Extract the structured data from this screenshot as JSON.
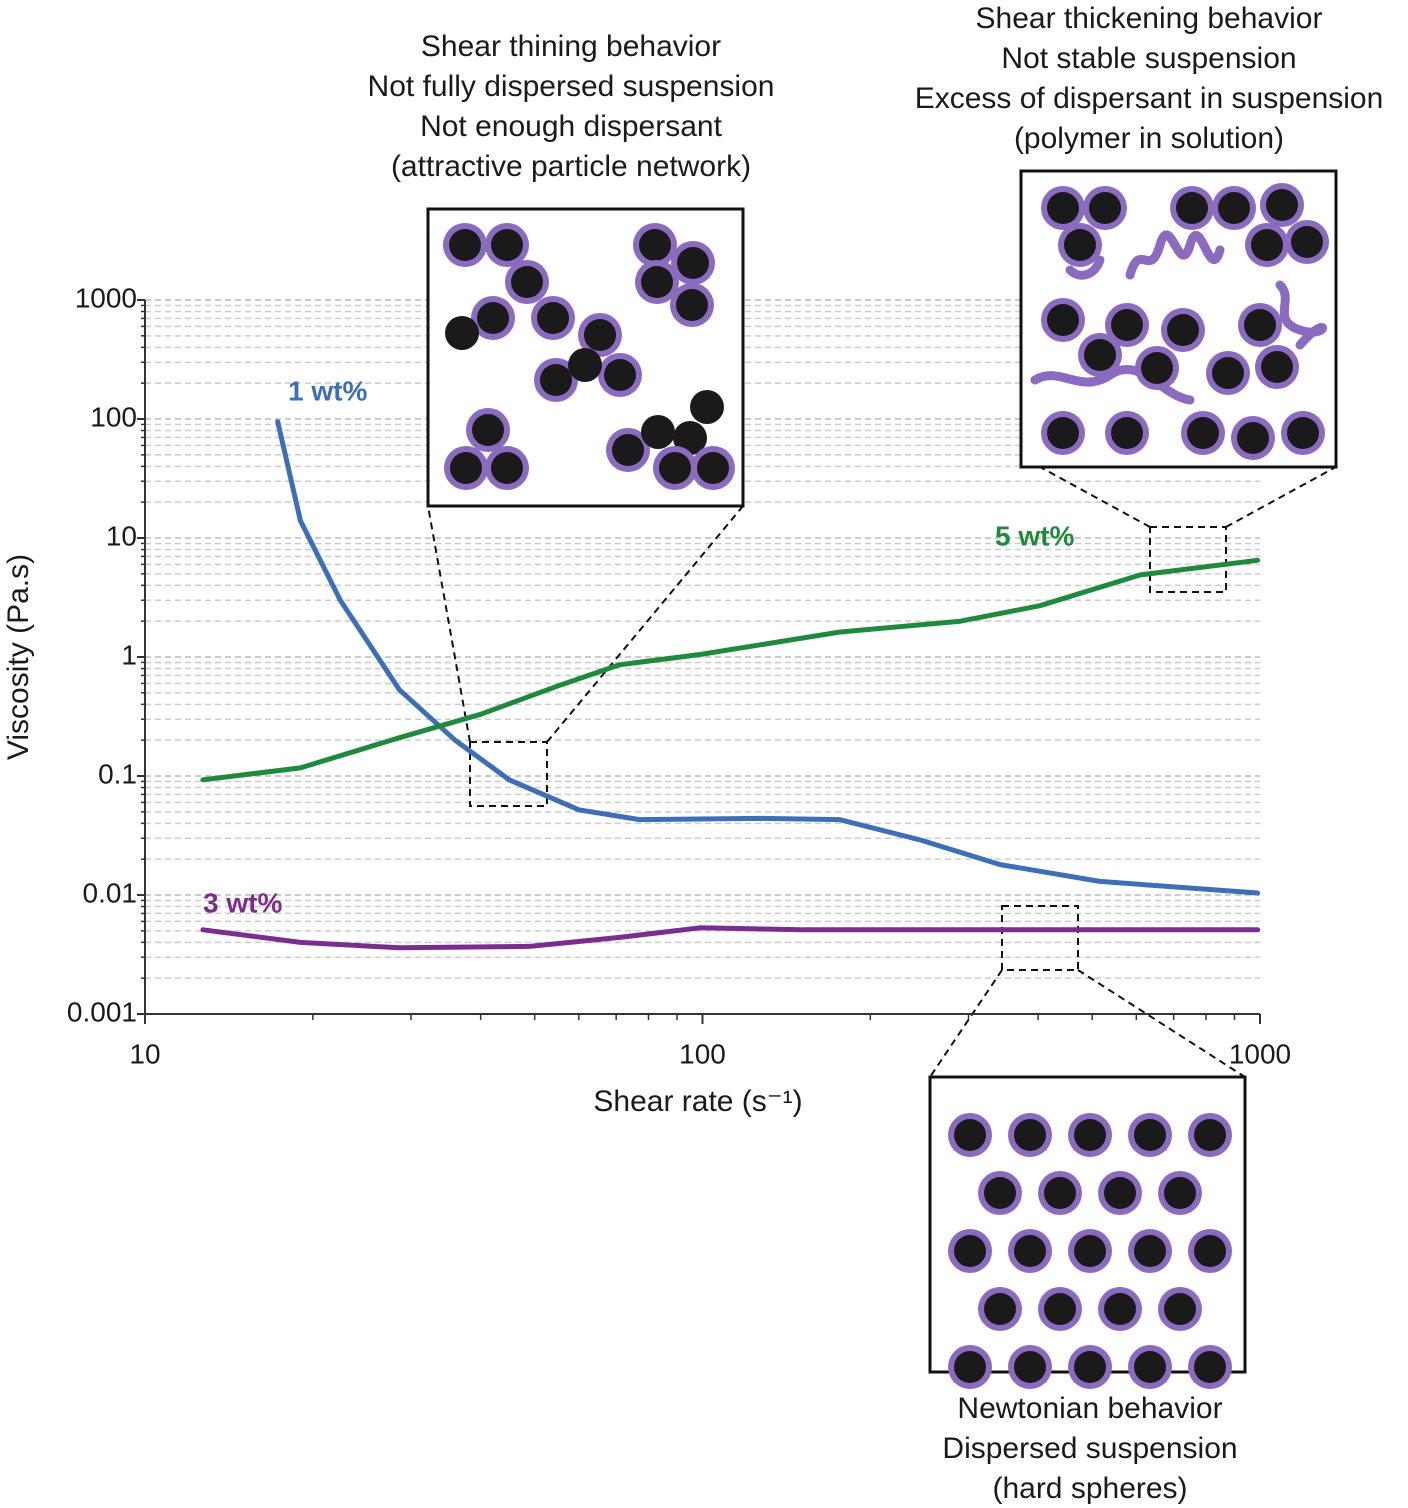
{
  "chart_data": {
    "type": "line",
    "x_label": "Shear rate (s⁻¹)",
    "y_label": "Viscosity (Pa.s)",
    "xscale": "log",
    "yscale": "log",
    "xlim": [
      10,
      1000
    ],
    "ylim": [
      0.001,
      1000
    ],
    "xticks": [
      10,
      100,
      1000
    ],
    "yticks": [
      0.001,
      0.01,
      0.1,
      1,
      10,
      100,
      1000
    ],
    "grid": true,
    "minor_grid": true,
    "series": [
      {
        "name": "1 wt%",
        "color": "#3d6fb6",
        "x": [
          17.3,
          19,
          22.4,
          28.6,
          36,
          45,
          60,
          77,
          127,
          176,
          246,
          342,
          516,
          990
        ],
        "values": [
          95,
          14,
          3.0,
          0.53,
          0.2,
          0.093,
          0.052,
          0.043,
          0.044,
          0.043,
          0.029,
          0.018,
          0.013,
          0.0104
        ]
      },
      {
        "name": "5 wt%",
        "color": "#1f8a3e",
        "x": [
          12.7,
          19,
          28.6,
          40,
          55.5,
          71,
          99,
          176,
          290,
          403,
          610,
          990
        ],
        "values": [
          0.093,
          0.117,
          0.21,
          0.33,
          0.58,
          0.86,
          1.05,
          1.62,
          2.0,
          2.7,
          4.9,
          6.5
        ]
      },
      {
        "name": "3 wt%",
        "color": "#7b2d8e",
        "x": [
          12.7,
          19,
          28.6,
          49,
          71,
          99,
          150,
          990
        ],
        "values": [
          0.0051,
          0.004,
          0.0036,
          0.0037,
          0.0044,
          0.0053,
          0.0051,
          0.0051
        ]
      }
    ],
    "annotations": [
      {
        "lines": [
          "Shear thining behavior",
          "Not fully dispersed suspension",
          "Not enough dispersant",
          "(attractive particle network)"
        ]
      },
      {
        "lines": [
          "Shear thickening behavior",
          "Not stable suspension",
          "Excess of dispersant in suspension",
          "(polymer in solution)"
        ]
      },
      {
        "lines": [
          "Newtonian behavior",
          "Dispersed suspension",
          "(hard spheres)"
        ]
      }
    ]
  }
}
